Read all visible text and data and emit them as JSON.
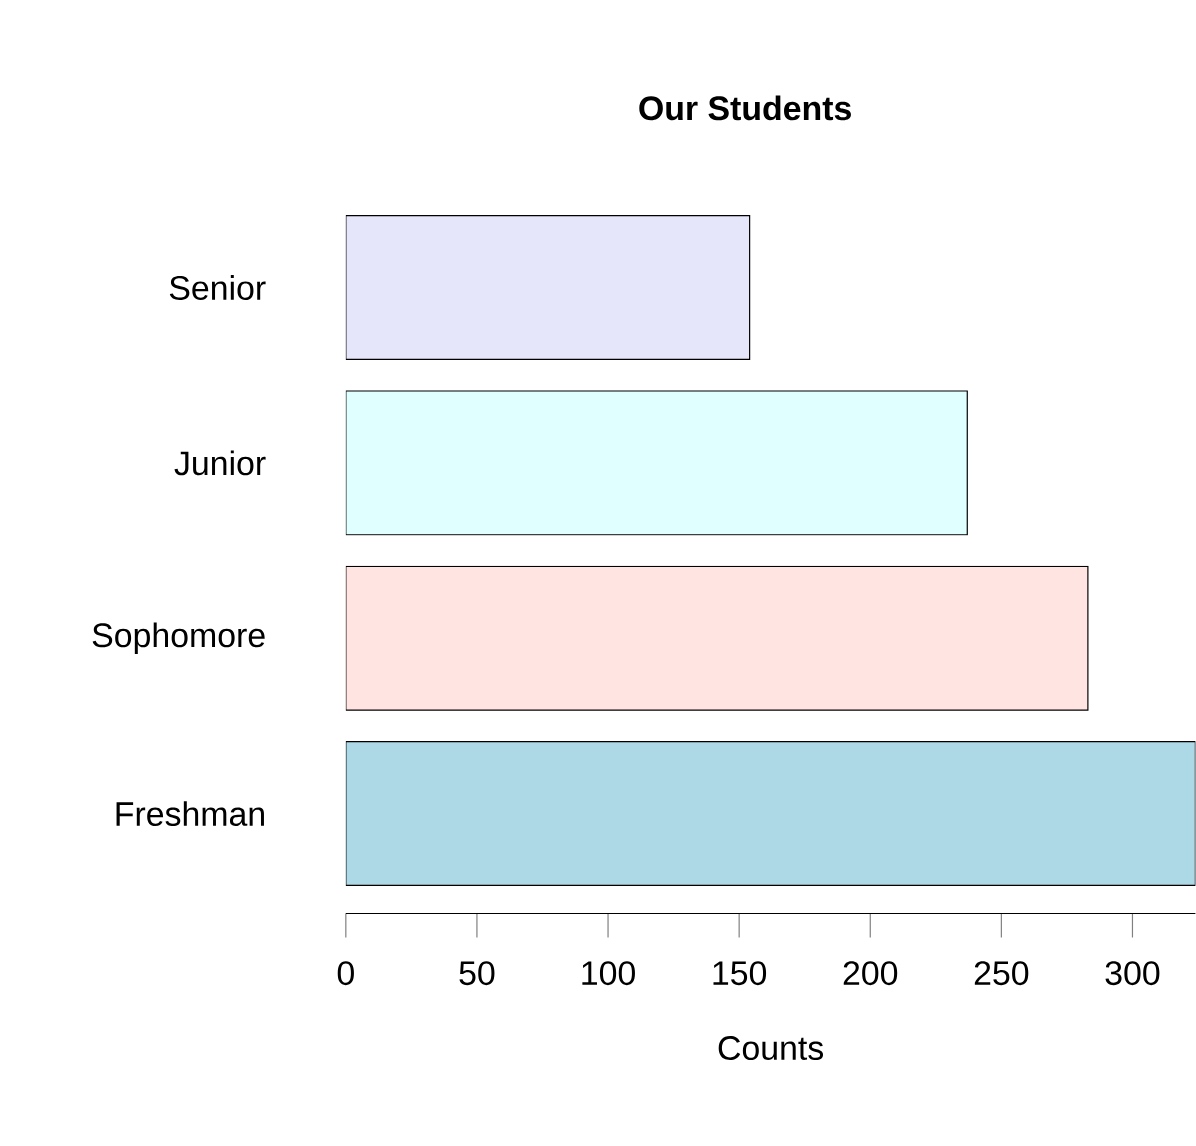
{
  "chart_data": {
    "type": "bar",
    "orientation": "horizontal",
    "title": "Our Students",
    "xlabel": "Counts",
    "categories": [
      "Senior",
      "Junior",
      "Sophomore",
      "Freshman"
    ],
    "values": [
      154,
      237,
      283,
      324
    ],
    "colors": [
      "#e6e6fa",
      "#e0ffff",
      "#ffe4e1",
      "#add8e6"
    ],
    "xlim": [
      0,
      324
    ],
    "xticks": [
      0,
      50,
      100,
      150,
      200,
      250,
      300
    ]
  }
}
